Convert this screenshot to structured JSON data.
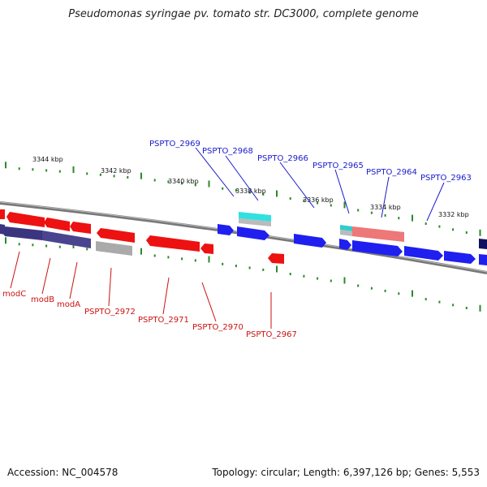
{
  "title": "Pseudomonas syringae pv. tomato str. DC3000, complete genome",
  "footer": {
    "accession": "Accession: NC_004578",
    "summary": "Topology: circular; Length: 6,397,126 bp; Genes: 5,553"
  },
  "colors": {
    "forward_label": "#1a1acc",
    "reverse_label": "#cc1111",
    "forward_gene": "#1f1ff0",
    "reverse_gene": "#ee1111",
    "tick": "#2a8a2a"
  },
  "scale_labels": [
    "3344 kbp",
    "3342 kbp",
    "3340 kbp",
    "3338 kbp",
    "3336 kbp",
    "3334 kbp",
    "3332 kbp"
  ],
  "forward_labels": [
    "PSPTO_2969",
    "PSPTO_2968",
    "PSPTO_2966",
    "PSPTO_2965",
    "PSPTO_2964",
    "PSPTO_2963"
  ],
  "reverse_labels": [
    "modC",
    "modB",
    "modA",
    "PSPTO_2972",
    "PSPTO_2971",
    "PSPTO_2970",
    "PSPTO_2967"
  ]
}
